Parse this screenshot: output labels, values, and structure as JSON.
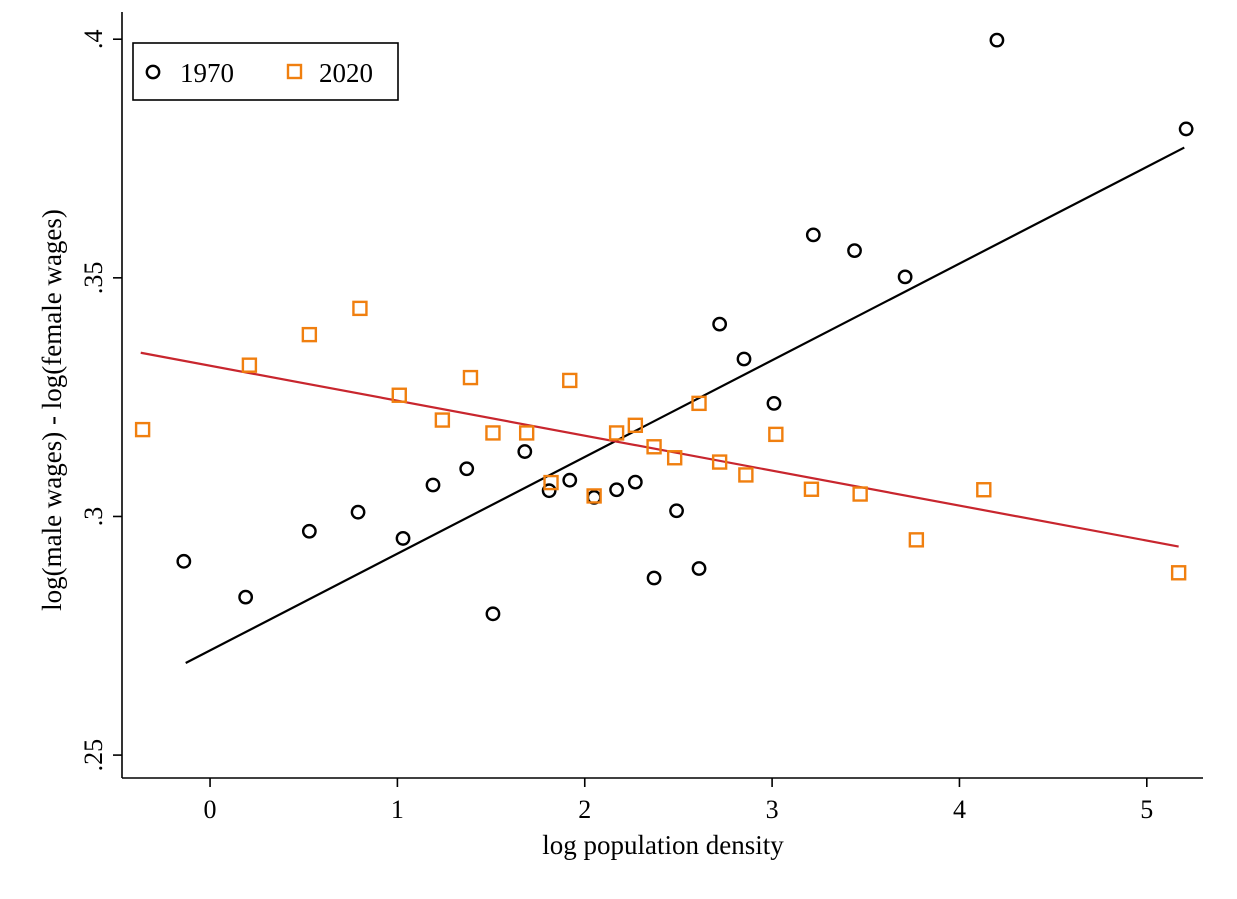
{
  "chart_data": {
    "type": "scatter",
    "title": "",
    "xlabel": "log population density",
    "ylabel": "log(male wages) - log(female wages)",
    "xlim": [
      -0.47,
      5.3
    ],
    "ylim": [
      0.2452,
      0.4057
    ],
    "xticks": [
      0,
      1,
      2,
      3,
      4,
      5
    ],
    "xtick_labels": [
      "0",
      "1",
      "2",
      "3",
      "4",
      "5"
    ],
    "yticks": [
      0.25,
      0.3,
      0.35,
      0.4
    ],
    "ytick_labels": [
      ".25",
      ".3",
      ".35",
      ".4"
    ],
    "grid": false,
    "legend_position": "top-left",
    "series": [
      {
        "name": "1970",
        "color": "#000000",
        "marker": "hollow-circle",
        "x": [
          -0.14,
          0.19,
          0.53,
          0.79,
          1.03,
          1.19,
          1.37,
          1.51,
          1.68,
          1.81,
          1.92,
          2.05,
          2.17,
          2.27,
          2.37,
          2.49,
          2.61,
          2.72,
          2.85,
          3.01,
          3.22,
          3.44,
          3.71,
          4.2,
          5.21
        ],
        "y": [
          0.2906,
          0.2831,
          0.2969,
          0.3009,
          0.2954,
          0.3066,
          0.31,
          0.2796,
          0.3136,
          0.3054,
          0.3076,
          0.304,
          0.3056,
          0.3072,
          0.2871,
          0.3012,
          0.2891,
          0.3403,
          0.333,
          0.3237,
          0.359,
          0.3557,
          0.3502,
          0.3998,
          0.3812
        ]
      },
      {
        "name": "2020",
        "color": "#f07f0f",
        "marker": "hollow-square",
        "x": [
          -0.36,
          0.21,
          0.53,
          0.8,
          1.01,
          1.24,
          1.39,
          1.51,
          1.69,
          1.82,
          1.92,
          2.05,
          2.17,
          2.27,
          2.37,
          2.48,
          2.61,
          2.72,
          2.86,
          3.02,
          3.21,
          3.47,
          3.77,
          4.13,
          5.17
        ],
        "y": [
          0.3182,
          0.3317,
          0.3381,
          0.3436,
          0.3254,
          0.3202,
          0.3291,
          0.3175,
          0.3175,
          0.3071,
          0.3285,
          0.3043,
          0.3175,
          0.3191,
          0.3146,
          0.3123,
          0.3237,
          0.3114,
          0.3087,
          0.3172,
          0.3057,
          0.3047,
          0.2951,
          0.3056,
          0.2882
        ]
      }
    ],
    "fit_lines": [
      {
        "series": "1970",
        "color": "#000000",
        "x": [
          -0.13,
          5.2
        ],
        "y": [
          0.2693,
          0.3773
        ]
      },
      {
        "series": "2020",
        "color": "#c8262e",
        "x": [
          -0.37,
          5.17
        ],
        "y": [
          0.3343,
          0.2937
        ]
      }
    ]
  }
}
